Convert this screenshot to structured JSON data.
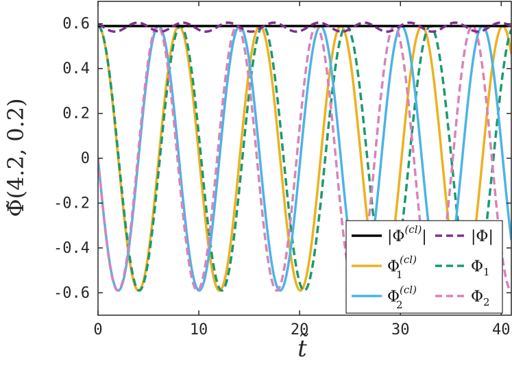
{
  "chart_data": {
    "type": "line",
    "title": "",
    "xlabel": "t̃",
    "ylabel": "Φ̃(4.2, 0.2)",
    "xlim": [
      0,
      41
    ],
    "ylim": [
      -0.7,
      0.7
    ],
    "xticks": [
      0,
      10,
      20,
      30,
      40
    ],
    "yticks": [
      0.6,
      0.4,
      0.2,
      0,
      -0.2,
      -0.4,
      -0.6
    ],
    "xtick_labels": [
      "0",
      "10",
      "20",
      "30",
      "40"
    ],
    "ytick_labels": [
      "0.6",
      "0.4",
      "0.2",
      "0",
      "-0.2",
      "-0.4",
      "-0.6"
    ],
    "grid": false,
    "legend_placement": "bottom-right",
    "amplitude": 0.59,
    "series": [
      {
        "name": "|Φ(cl)|",
        "label_base": "|Φ",
        "label_sup": "(cl)",
        "label_end": "|",
        "color": "#000000",
        "dash": "solid",
        "kind": "constant",
        "value": 0.59
      },
      {
        "name": "|Φ|",
        "label_base": "|Φ|",
        "color": "#7e2f8e",
        "dash": "dashed",
        "kind": "abs_quantum",
        "mean": 0.585,
        "wiggle": 0.02
      },
      {
        "name": "Φ1(cl)",
        "label_base": "Φ",
        "label_sub": "1",
        "label_sup": "(cl)",
        "color": "#edb120",
        "dash": "solid",
        "kind": "cos",
        "period": 8.03,
        "phase": 0
      },
      {
        "name": "Φ1",
        "label_base": "Φ",
        "label_sub": "1",
        "color": "#1a9a6e",
        "dash": "dashed",
        "kind": "cos",
        "period": 8.03,
        "phase_lag": [
          0,
          0.3,
          0.9
        ]
      },
      {
        "name": "Φ2(cl)",
        "label_base": "Φ",
        "label_sub": "2",
        "label_sup": "(cl)",
        "color": "#4db3e6",
        "dash": "solid",
        "kind": "sin_neg",
        "period": 8.03,
        "phase": 0
      },
      {
        "name": "Φ2",
        "label_base": "Φ",
        "label_sub": "2",
        "color": "#d982b9",
        "dash": "dashed",
        "kind": "sin_neg",
        "period": 8.03,
        "phase_lag": [
          0,
          -0.3,
          -0.9
        ]
      }
    ]
  }
}
